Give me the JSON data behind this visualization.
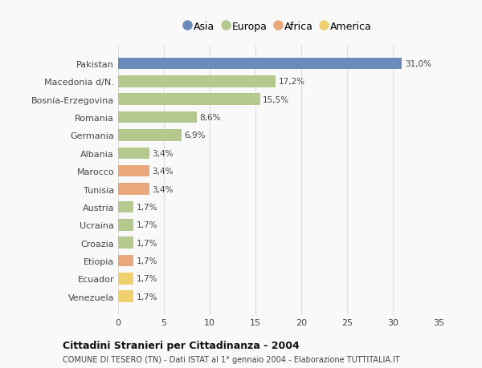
{
  "countries": [
    "Pakistan",
    "Macedonia d/N.",
    "Bosnia-Erzegovina",
    "Romania",
    "Germania",
    "Albania",
    "Marocco",
    "Tunisia",
    "Austria",
    "Ucraina",
    "Croazia",
    "Etiopia",
    "Ecuador",
    "Venezuela"
  ],
  "values": [
    31.0,
    17.2,
    15.5,
    8.6,
    6.9,
    3.4,
    3.4,
    3.4,
    1.7,
    1.7,
    1.7,
    1.7,
    1.7,
    1.7
  ],
  "labels": [
    "31,0%",
    "17,2%",
    "15,5%",
    "8,6%",
    "6,9%",
    "3,4%",
    "3,4%",
    "3,4%",
    "1,7%",
    "1,7%",
    "1,7%",
    "1,7%",
    "1,7%",
    "1,7%"
  ],
  "continents": [
    "Asia",
    "Europa",
    "Europa",
    "Europa",
    "Europa",
    "Europa",
    "Africa",
    "Africa",
    "Europa",
    "Europa",
    "Europa",
    "Africa",
    "America",
    "America"
  ],
  "continent_colors": {
    "Asia": "#6b8cba",
    "Europa": "#b5c98e",
    "Africa": "#e8a87c",
    "America": "#f0cf6e"
  },
  "legend_items": [
    "Asia",
    "Europa",
    "Africa",
    "America"
  ],
  "legend_colors": [
    "#6b8cba",
    "#b5c98e",
    "#e8a87c",
    "#f0cf6e"
  ],
  "title": "Cittadini Stranieri per Cittadinanza - 2004",
  "subtitle": "COMUNE DI TESERO (TN) - Dati ISTAT al 1° gennaio 2004 - Elaborazione TUTTITALIA.IT",
  "xlim": [
    0,
    35
  ],
  "xticks": [
    0,
    5,
    10,
    15,
    20,
    25,
    30,
    35
  ],
  "background_color": "#f9f9f9",
  "grid_color": "#dddddd",
  "bar_height": 0.65
}
